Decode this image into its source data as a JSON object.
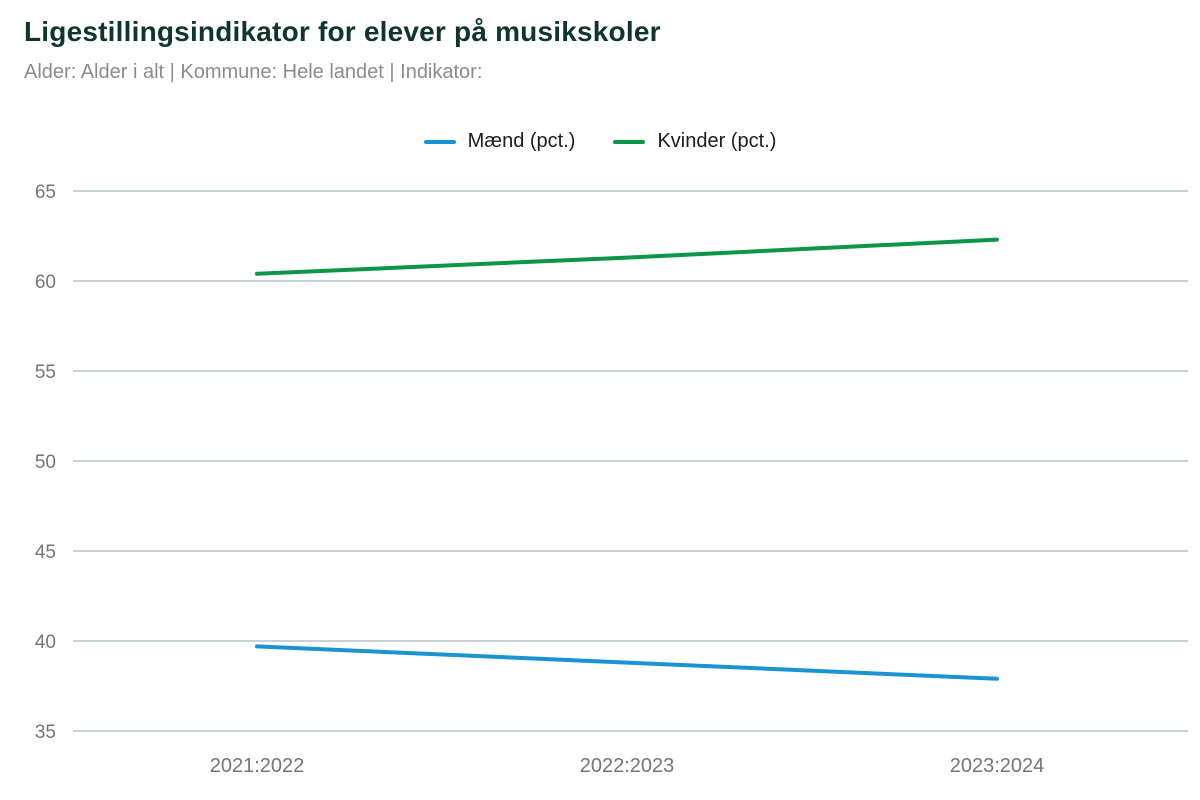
{
  "header": {
    "title": "Ligestillingsindikator for elever på musikskoler",
    "subtitle": "Alder: Alder i alt | Kommune: Hele landet | Indikator:"
  },
  "colors": {
    "title_text": "#10352f",
    "subtitle_text": "#8c8c8c",
    "legend_text": "#1c1c1c",
    "gridline": "#c9d1d7",
    "tick_label": "#757575",
    "maend_blue": "#1b93d3",
    "kvinder_green": "#0e9648"
  },
  "chart_data": {
    "type": "line",
    "title": "Ligestillingsindikator for elever på musikskoler",
    "subtitle": "Alder: Alder i alt | Kommune: Hele landet | Indikator:",
    "categories": [
      "2021:2022",
      "2022:2023",
      "2023:2024"
    ],
    "series": [
      {
        "name": "Mænd (pct.)",
        "color": "#1b93d3",
        "values": [
          39.7,
          38.8,
          37.9
        ]
      },
      {
        "name": "Kvinder (pct.)",
        "color": "#0e9648",
        "values": [
          60.4,
          61.3,
          62.3
        ]
      }
    ],
    "xlabel": "",
    "ylabel": "",
    "ylim": [
      35,
      65
    ],
    "yticks": [
      35,
      40,
      45,
      50,
      55,
      60,
      65
    ],
    "grid": "horizontal",
    "legend_position": "top-center"
  }
}
